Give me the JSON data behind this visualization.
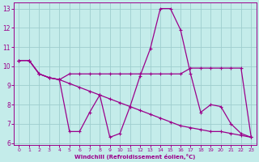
{
  "xlabel": "Windchill (Refroidissement éolien,°C)",
  "bg_color": "#c4ecea",
  "line_color": "#9b008b",
  "grid_color": "#9ecece",
  "series1_x": [
    0,
    1,
    2,
    3,
    4,
    5,
    6,
    7,
    8,
    9,
    10,
    11,
    12,
    13,
    14,
    15,
    16,
    17,
    18,
    19,
    20,
    21,
    22,
    23
  ],
  "series1_y": [
    10.3,
    10.3,
    9.6,
    9.4,
    9.3,
    6.6,
    6.6,
    7.6,
    8.5,
    6.3,
    6.5,
    7.9,
    9.5,
    10.9,
    13.0,
    13.0,
    11.9,
    9.6,
    7.6,
    8.0,
    7.9,
    7.0,
    6.5,
    6.3
  ],
  "series2_x": [
    0,
    1,
    2,
    3,
    4,
    5,
    6,
    7,
    8,
    9,
    10,
    11,
    12,
    13,
    14,
    15,
    16,
    17,
    18,
    19,
    20,
    21,
    22,
    23
  ],
  "series2_y": [
    10.3,
    10.3,
    9.6,
    9.4,
    9.3,
    9.6,
    9.6,
    9.6,
    9.6,
    9.6,
    9.6,
    9.6,
    9.6,
    9.6,
    9.6,
    9.6,
    9.6,
    9.9,
    9.9,
    9.9,
    9.9,
    9.9,
    9.9,
    6.3
  ],
  "series3_x": [
    0,
    1,
    2,
    3,
    4,
    5,
    6,
    7,
    8,
    9,
    10,
    11,
    12,
    13,
    14,
    15,
    16,
    17,
    18,
    19,
    20,
    21,
    22,
    23
  ],
  "series3_y": [
    10.3,
    10.3,
    9.6,
    9.4,
    9.3,
    9.1,
    8.9,
    8.7,
    8.5,
    8.3,
    8.1,
    7.9,
    7.7,
    7.5,
    7.3,
    7.1,
    6.9,
    6.8,
    6.7,
    6.6,
    6.6,
    6.5,
    6.4,
    6.3
  ],
  "xlim": [
    -0.5,
    23.5
  ],
  "ylim": [
    5.9,
    13.3
  ],
  "yticks": [
    6,
    7,
    8,
    9,
    10,
    11,
    12,
    13
  ],
  "xticks": [
    0,
    1,
    2,
    3,
    4,
    5,
    6,
    7,
    8,
    9,
    10,
    11,
    12,
    13,
    14,
    15,
    16,
    17,
    18,
    19,
    20,
    21,
    22,
    23
  ],
  "xtick_labels": [
    "0",
    "1",
    "2",
    "3",
    "4",
    "5",
    "6",
    "7",
    "8",
    "9",
    "10",
    "11",
    "12",
    "13",
    "14",
    "15",
    "16",
    "17",
    "18",
    "19",
    "20",
    "21",
    "22",
    "23"
  ]
}
